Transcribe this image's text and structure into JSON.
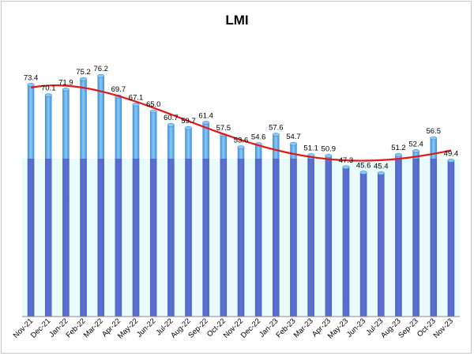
{
  "chart_data": {
    "type": "bar",
    "title": "LMI",
    "categories": [
      "Nov-21",
      "Dec-21",
      "Jan-22",
      "Feb-22",
      "Mar-22",
      "Apr-22",
      "May-22",
      "Jun-22",
      "Jul-22",
      "Aug-22",
      "Sep-22",
      "Oct-22",
      "Nov-22",
      "Dec-22",
      "Jan-23",
      "Feb-23",
      "Mar-23",
      "Apr-23",
      "May-23",
      "Jun-23",
      "Jul-23",
      "Aug-23",
      "Sep-23",
      "Oct-23",
      "Nov-23"
    ],
    "values": [
      73.4,
      70.1,
      71.9,
      75.2,
      76.2,
      69.7,
      67.1,
      65.0,
      60.7,
      59.7,
      61.4,
      57.5,
      53.6,
      54.6,
      57.6,
      54.7,
      51.1,
      50.9,
      47.3,
      45.6,
      45.4,
      51.2,
      52.4,
      56.5,
      49.4
    ],
    "ylim": [
      0,
      85
    ],
    "reference_line": 50,
    "trendline": "polynomial",
    "legend": "none",
    "grid": false,
    "colors": {
      "bar": "#3d8fd9",
      "bar_highlight": "#8cc9f5",
      "bar_below_reference": "#5560c8",
      "reference_band": "#e9fbfb",
      "trend_line": "#e01818"
    }
  }
}
